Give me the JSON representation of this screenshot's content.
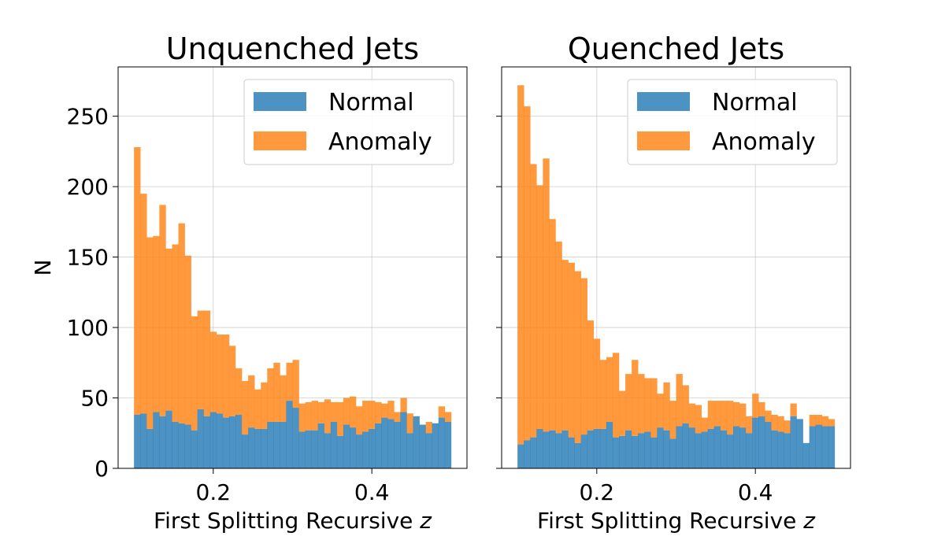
{
  "chart_data": [
    {
      "type": "bar",
      "stacked": true,
      "title": "Unquenched Jets",
      "xlabel": "First Splitting Recursive z",
      "ylabel": "N",
      "xlim": [
        0.08,
        0.52
      ],
      "ylim": [
        0,
        285
      ],
      "xticks": [
        {
          "value": 0.2,
          "label": "0.2"
        },
        {
          "value": 0.4,
          "label": "0.4"
        }
      ],
      "yticks": [
        {
          "value": 0,
          "label": "0"
        },
        {
          "value": 50,
          "label": "50"
        },
        {
          "value": 100,
          "label": "100"
        },
        {
          "value": 150,
          "label": "150"
        },
        {
          "value": 200,
          "label": "200"
        },
        {
          "value": 250,
          "label": "250"
        }
      ],
      "grid": true,
      "legend_position": "top-right",
      "bins": {
        "start": 0.1,
        "end": 0.5,
        "count": 50
      },
      "series": [
        {
          "name": "Normal",
          "color": "#1f77b4",
          "values": [
            38,
            39,
            28,
            40,
            37,
            41,
            33,
            32,
            31,
            27,
            42,
            37,
            40,
            39,
            36,
            37,
            38,
            24,
            29,
            28,
            28,
            33,
            33,
            33,
            48,
            43,
            26,
            27,
            27,
            32,
            25,
            33,
            23,
            31,
            29,
            24,
            26,
            28,
            32,
            36,
            35,
            33,
            40,
            25,
            37,
            31,
            25,
            32,
            36,
            33
          ]
        },
        {
          "name": "Anomaly",
          "color": "#ff7f0e",
          "values": [
            190,
            156,
            136,
            125,
            150,
            115,
            126,
            142,
            120,
            81,
            70,
            75,
            57,
            56,
            59,
            50,
            33,
            38,
            37,
            28,
            33,
            38,
            42,
            33,
            27,
            34,
            20,
            20,
            21,
            15,
            24,
            14,
            24,
            19,
            22,
            20,
            22,
            20,
            15,
            10,
            13,
            7,
            10,
            14,
            0,
            0,
            8,
            0,
            8,
            7
          ]
        }
      ]
    },
    {
      "type": "bar",
      "stacked": true,
      "title": "Quenched Jets",
      "xlabel": "First Splitting Recursive z",
      "ylabel": "",
      "xlim": [
        0.08,
        0.52
      ],
      "ylim": [
        0,
        285
      ],
      "xticks": [
        {
          "value": 0.2,
          "label": "0.2"
        },
        {
          "value": 0.4,
          "label": "0.4"
        }
      ],
      "yticks": [
        {
          "value": 0,
          "label": ""
        },
        {
          "value": 50,
          "label": ""
        },
        {
          "value": 100,
          "label": ""
        },
        {
          "value": 150,
          "label": ""
        },
        {
          "value": 200,
          "label": ""
        },
        {
          "value": 250,
          "label": ""
        }
      ],
      "grid": true,
      "legend_position": "top-right",
      "bins": {
        "start": 0.1,
        "end": 0.5,
        "count": 50
      },
      "series": [
        {
          "name": "Normal",
          "color": "#1f77b4",
          "values": [
            17,
            20,
            22,
            28,
            26,
            27,
            25,
            27,
            22,
            18,
            24,
            27,
            28,
            28,
            33,
            22,
            23,
            27,
            23,
            25,
            26,
            22,
            29,
            27,
            21,
            30,
            32,
            29,
            25,
            26,
            28,
            30,
            27,
            24,
            30,
            29,
            25,
            36,
            37,
            33,
            27,
            26,
            25,
            37,
            35,
            18,
            30,
            31,
            30,
            30
          ]
        },
        {
          "name": "Anomaly",
          "color": "#ff7f0e",
          "values": [
            255,
            237,
            194,
            173,
            194,
            150,
            136,
            121,
            124,
            122,
            111,
            78,
            64,
            49,
            46,
            60,
            32,
            40,
            54,
            42,
            38,
            42,
            24,
            34,
            27,
            37,
            27,
            17,
            20,
            10,
            20,
            18,
            21,
            24,
            17,
            17,
            12,
            17,
            10,
            8,
            11,
            11,
            9,
            9,
            0,
            0,
            8,
            7,
            7,
            5
          ]
        }
      ]
    }
  ]
}
